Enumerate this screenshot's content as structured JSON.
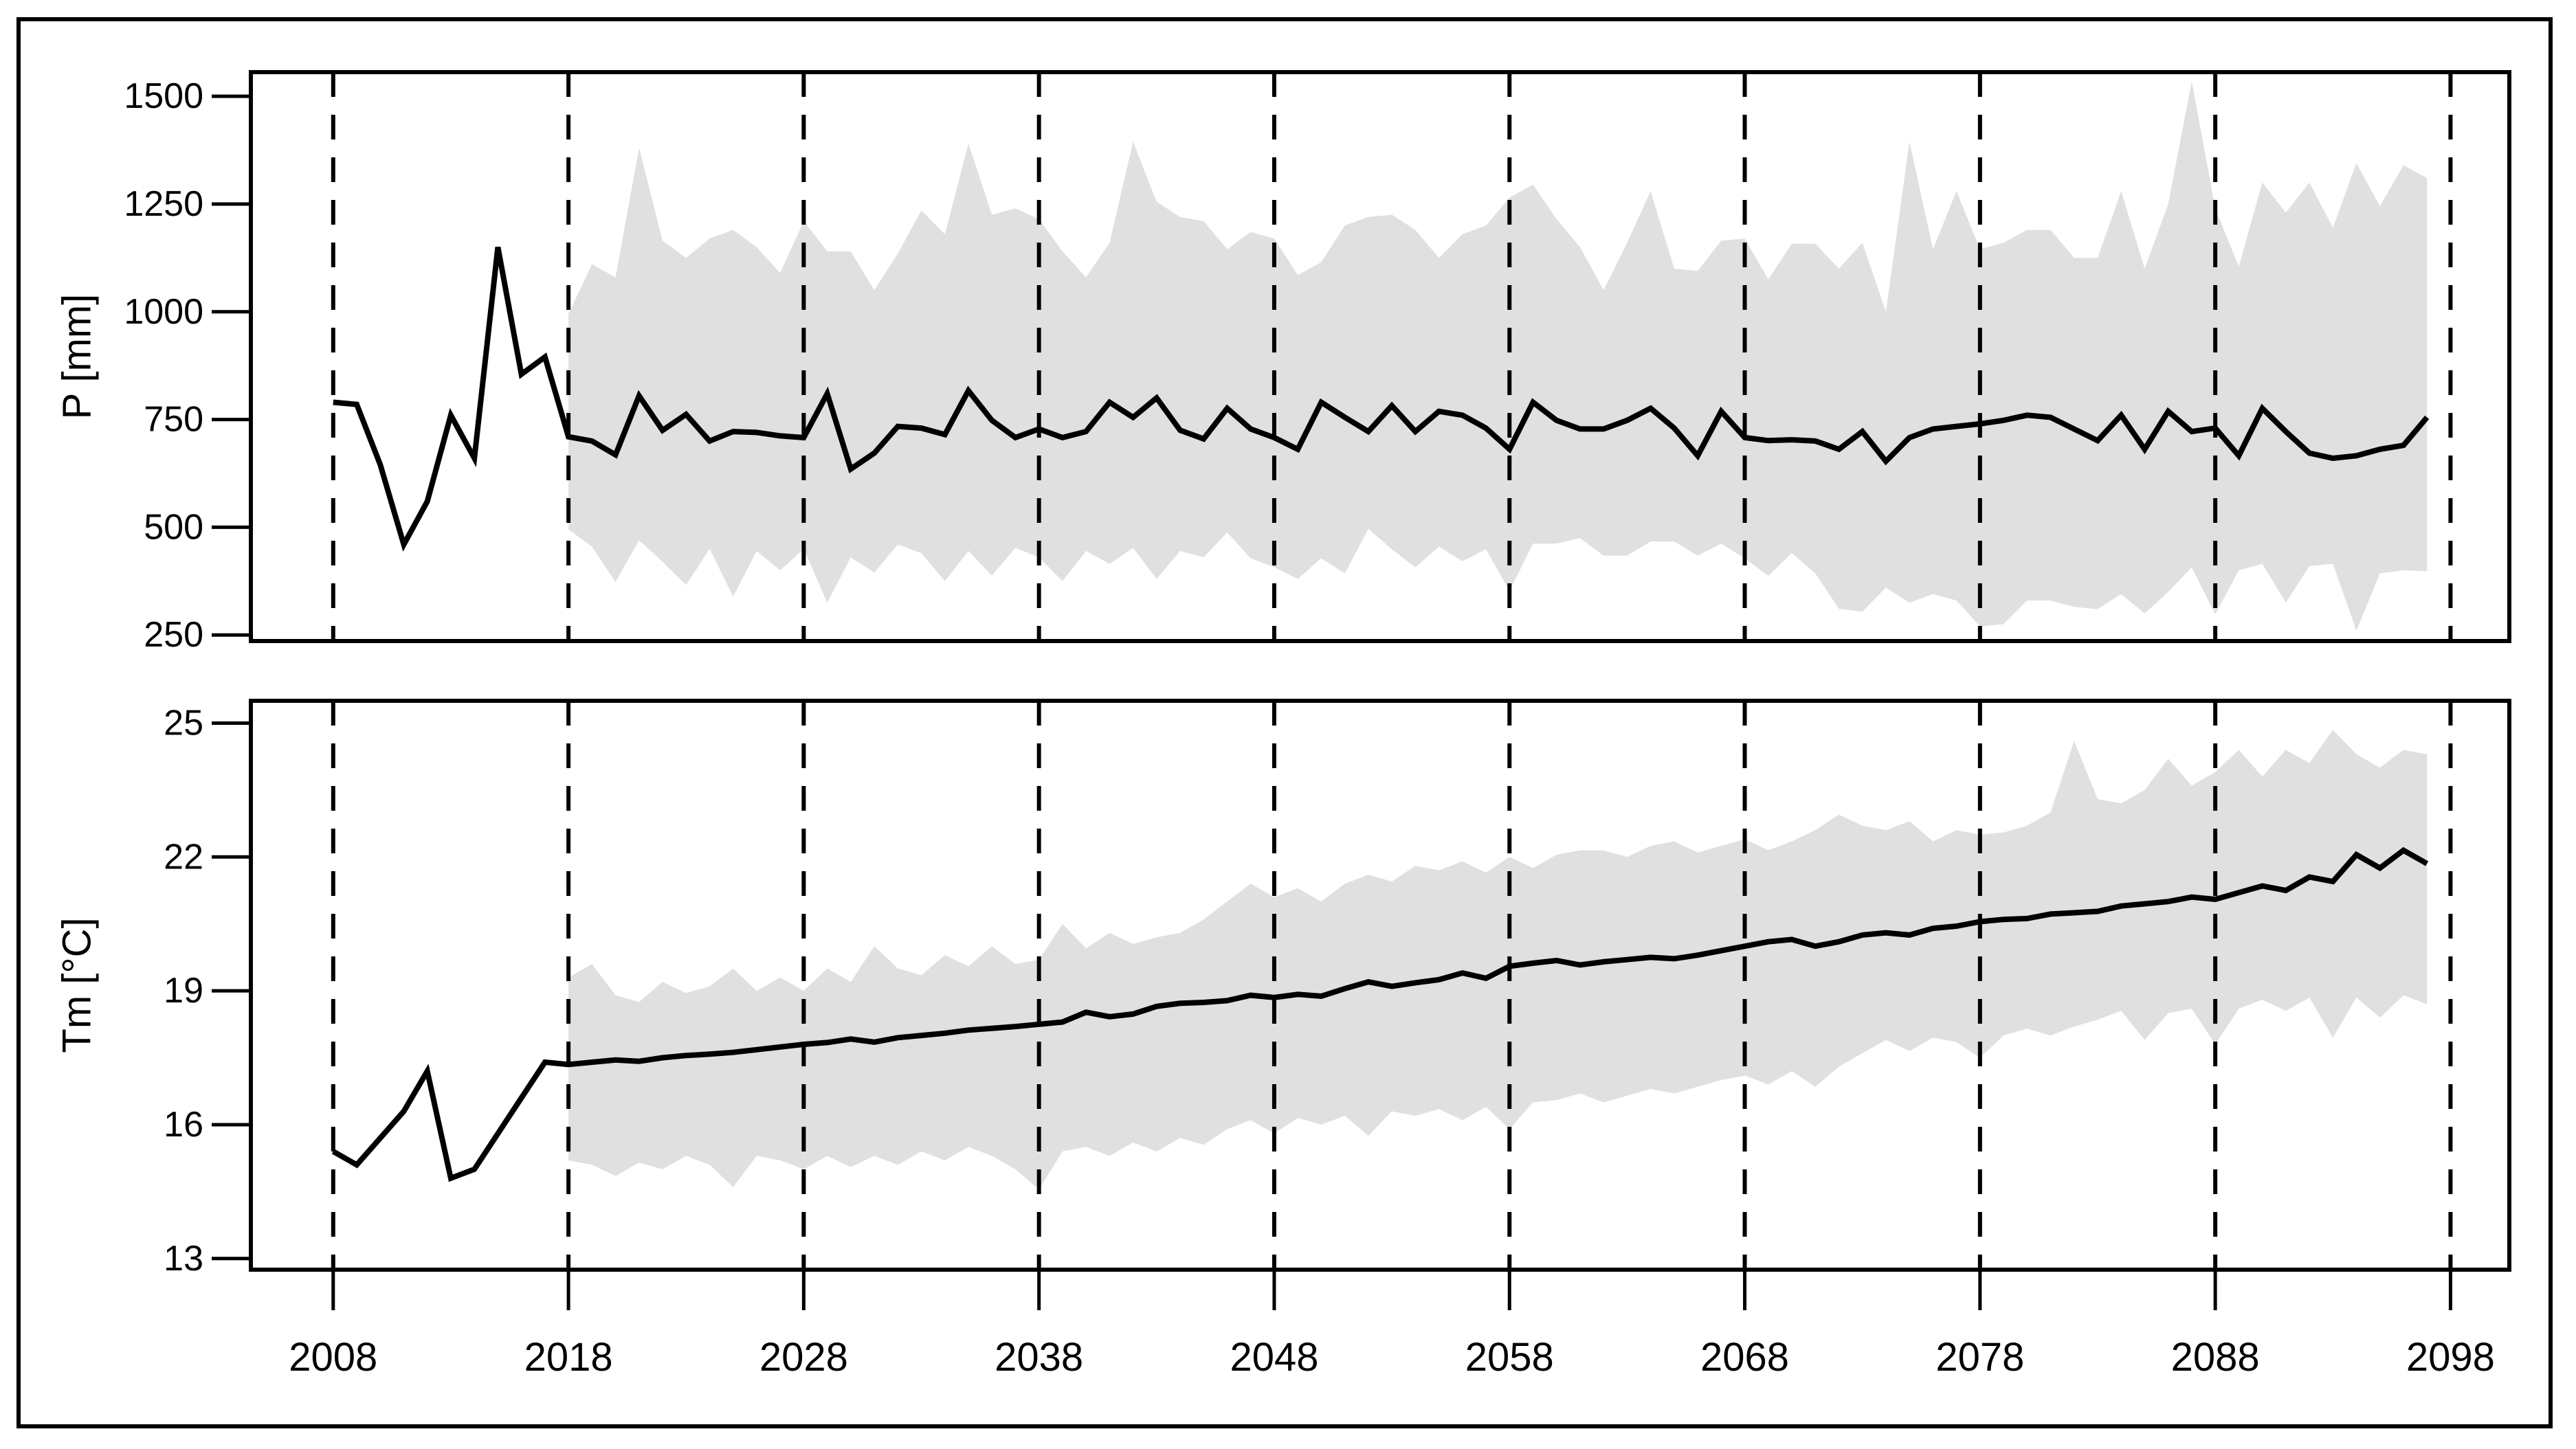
{
  "figure": {
    "background_color": "#ffffff",
    "frame_color": "#000000",
    "line_color": "#000000",
    "band_color": "#e0e0e0",
    "grid_style": "vertical-dashed"
  },
  "chart_data": [
    {
      "type": "line",
      "panel": "precipitation",
      "ylabel": "P [mm]",
      "yticks": [
        250,
        500,
        750,
        1000,
        1250,
        1500
      ],
      "ylim": [
        236,
        1556
      ],
      "xticks": [
        2008,
        2018,
        2028,
        2038,
        2048,
        2058,
        2068,
        2078,
        2088,
        2098
      ],
      "xlim": [
        2004.5,
        2100.5
      ],
      "grid": "vertical-dashed",
      "legend": "none",
      "band_color": "#e0e0e0",
      "line_color": "#000000",
      "series": [
        {
          "name": "observed",
          "x_start": 2008,
          "values": [
            790,
            785,
            645,
            460,
            560,
            760,
            660,
            1150,
            855,
            895
          ]
        },
        {
          "name": "ensemble_mean",
          "x_start": 2018,
          "values": [
            710,
            700,
            668,
            805,
            725,
            762,
            700,
            722,
            720,
            712,
            708,
            810,
            635,
            672,
            734,
            730,
            715,
            817,
            748,
            708,
            728,
            708,
            722,
            790,
            755,
            800,
            725,
            705,
            776,
            728,
            708,
            681,
            790,
            755,
            722,
            782,
            722,
            769,
            760,
            730,
            681,
            790,
            748,
            728,
            728,
            748,
            776,
            730,
            666,
            769,
            708,
            701,
            703,
            700,
            681,
            722,
            653,
            708,
            728,
            734,
            740,
            748,
            760,
            755,
            728,
            701,
            760,
            681,
            769,
            722,
            730,
            666,
            776,
            722,
            672,
            660,
            666,
            681,
            690,
            755
          ]
        }
      ],
      "band": {
        "name": "ensemble_range",
        "x_start": 2018,
        "upper": [
          995,
          1110,
          1080,
          1380,
          1165,
          1125,
          1170,
          1190,
          1150,
          1090,
          1210,
          1140,
          1140,
          1050,
          1135,
          1235,
          1180,
          1390,
          1225,
          1240,
          1215,
          1140,
          1080,
          1160,
          1395,
          1255,
          1220,
          1210,
          1145,
          1185,
          1170,
          1085,
          1115,
          1200,
          1220,
          1225,
          1190,
          1125,
          1180,
          1200,
          1265,
          1295,
          1215,
          1150,
          1050,
          1160,
          1280,
          1100,
          1095,
          1165,
          1170,
          1075,
          1158,
          1158,
          1100,
          1160,
          1000,
          1395,
          1145,
          1280,
          1145,
          1160,
          1190,
          1190,
          1125,
          1125,
          1280,
          1100,
          1250,
          1535,
          1240,
          1105,
          1300,
          1230,
          1300,
          1195,
          1345,
          1245,
          1340,
          1310
        ],
        "lower": [
          495,
          455,
          373,
          470,
          420,
          366,
          450,
          339,
          445,
          400,
          450,
          325,
          430,
          395,
          460,
          440,
          375,
          445,
          388,
          452,
          430,
          375,
          445,
          415,
          452,
          380,
          445,
          430,
          488,
          428,
          407,
          380,
          428,
          393,
          496,
          449,
          407,
          455,
          421,
          449,
          352,
          462,
          462,
          475,
          434,
          434,
          467,
          467,
          434,
          462,
          428,
          387,
          440,
          393,
          311,
          304,
          360,
          325,
          345,
          330,
          270,
          275,
          330,
          330,
          315,
          310,
          345,
          300,
          350,
          407,
          298,
          400,
          415,
          325,
          410,
          415,
          260,
          393,
          400,
          398
        ]
      }
    },
    {
      "type": "line",
      "panel": "mean_temperature",
      "ylabel": "Tm [°C]",
      "yticks": [
        13,
        16,
        19,
        22,
        25
      ],
      "ylim": [
        12.75,
        25.5
      ],
      "xticks": [
        2008,
        2018,
        2028,
        2038,
        2048,
        2058,
        2068,
        2078,
        2088,
        2098
      ],
      "xlim": [
        2004.5,
        2100.5
      ],
      "grid": "vertical-dashed",
      "legend": "none",
      "band_color": "#e0e0e0",
      "line_color": "#000000",
      "series": [
        {
          "name": "observed",
          "x_start": 2008,
          "values": [
            15.4,
            15.1,
            15.7,
            16.3,
            17.2,
            14.8,
            15.0,
            15.8,
            16.6,
            17.4
          ]
        },
        {
          "name": "ensemble_mean",
          "x_start": 2018,
          "values": [
            17.35,
            17.4,
            17.45,
            17.42,
            17.5,
            17.55,
            17.58,
            17.62,
            17.68,
            17.74,
            17.8,
            17.84,
            17.92,
            17.85,
            17.95,
            18.0,
            18.05,
            18.12,
            18.16,
            18.2,
            18.25,
            18.3,
            18.52,
            18.42,
            18.48,
            18.65,
            18.72,
            18.74,
            18.78,
            18.9,
            18.85,
            18.92,
            18.88,
            19.05,
            19.2,
            19.1,
            19.18,
            19.25,
            19.4,
            19.28,
            19.55,
            19.62,
            19.68,
            19.58,
            19.65,
            19.7,
            19.75,
            19.72,
            19.8,
            19.9,
            20.0,
            20.1,
            20.15,
            20.0,
            20.1,
            20.25,
            20.3,
            20.25,
            20.4,
            20.45,
            20.55,
            20.6,
            20.62,
            20.72,
            20.75,
            20.78,
            20.9,
            20.95,
            21.0,
            21.1,
            21.05,
            21.2,
            21.35,
            21.25,
            21.55,
            21.45,
            22.05,
            21.75,
            22.15,
            21.85
          ]
        }
      ],
      "band": {
        "name": "ensemble_range",
        "x_start": 2018,
        "upper": [
          19.3,
          19.6,
          18.9,
          18.75,
          19.2,
          18.95,
          19.1,
          19.5,
          19.0,
          19.3,
          19.0,
          19.5,
          19.2,
          20.0,
          19.5,
          19.35,
          19.8,
          19.55,
          20.0,
          19.6,
          19.7,
          20.5,
          19.95,
          20.3,
          20.05,
          20.2,
          20.3,
          20.6,
          21.0,
          21.4,
          21.1,
          21.3,
          21.0,
          21.4,
          21.6,
          21.45,
          21.8,
          21.7,
          21.9,
          21.65,
          22.0,
          21.75,
          22.05,
          22.15,
          22.15,
          22.0,
          22.25,
          22.35,
          22.1,
          22.25,
          22.4,
          22.15,
          22.35,
          22.6,
          22.95,
          22.7,
          22.6,
          22.8,
          22.35,
          22.6,
          22.5,
          22.55,
          22.7,
          23.0,
          24.6,
          23.3,
          23.2,
          23.5,
          24.2,
          23.6,
          23.9,
          24.4,
          23.8,
          24.4,
          24.1,
          24.85,
          24.3,
          24.0,
          24.4,
          24.3
        ],
        "lower": [
          15.2,
          15.1,
          14.85,
          15.15,
          15.0,
          15.3,
          15.1,
          14.6,
          15.3,
          15.2,
          15.0,
          15.3,
          15.05,
          15.3,
          15.1,
          15.4,
          15.2,
          15.5,
          15.3,
          15.0,
          14.55,
          15.4,
          15.5,
          15.3,
          15.6,
          15.4,
          15.7,
          15.55,
          15.9,
          16.1,
          15.8,
          16.15,
          16.0,
          16.2,
          15.75,
          16.3,
          16.2,
          16.35,
          16.1,
          16.4,
          15.9,
          16.5,
          16.55,
          16.7,
          16.5,
          16.65,
          16.8,
          16.7,
          16.85,
          17.0,
          17.1,
          16.9,
          17.2,
          16.85,
          17.3,
          17.6,
          17.9,
          17.65,
          17.95,
          17.85,
          17.5,
          18.0,
          18.15,
          18.0,
          18.2,
          18.35,
          18.55,
          17.9,
          18.5,
          18.6,
          17.8,
          18.6,
          18.8,
          18.55,
          18.85,
          17.95,
          18.85,
          18.4,
          18.9,
          18.7
        ]
      }
    }
  ]
}
